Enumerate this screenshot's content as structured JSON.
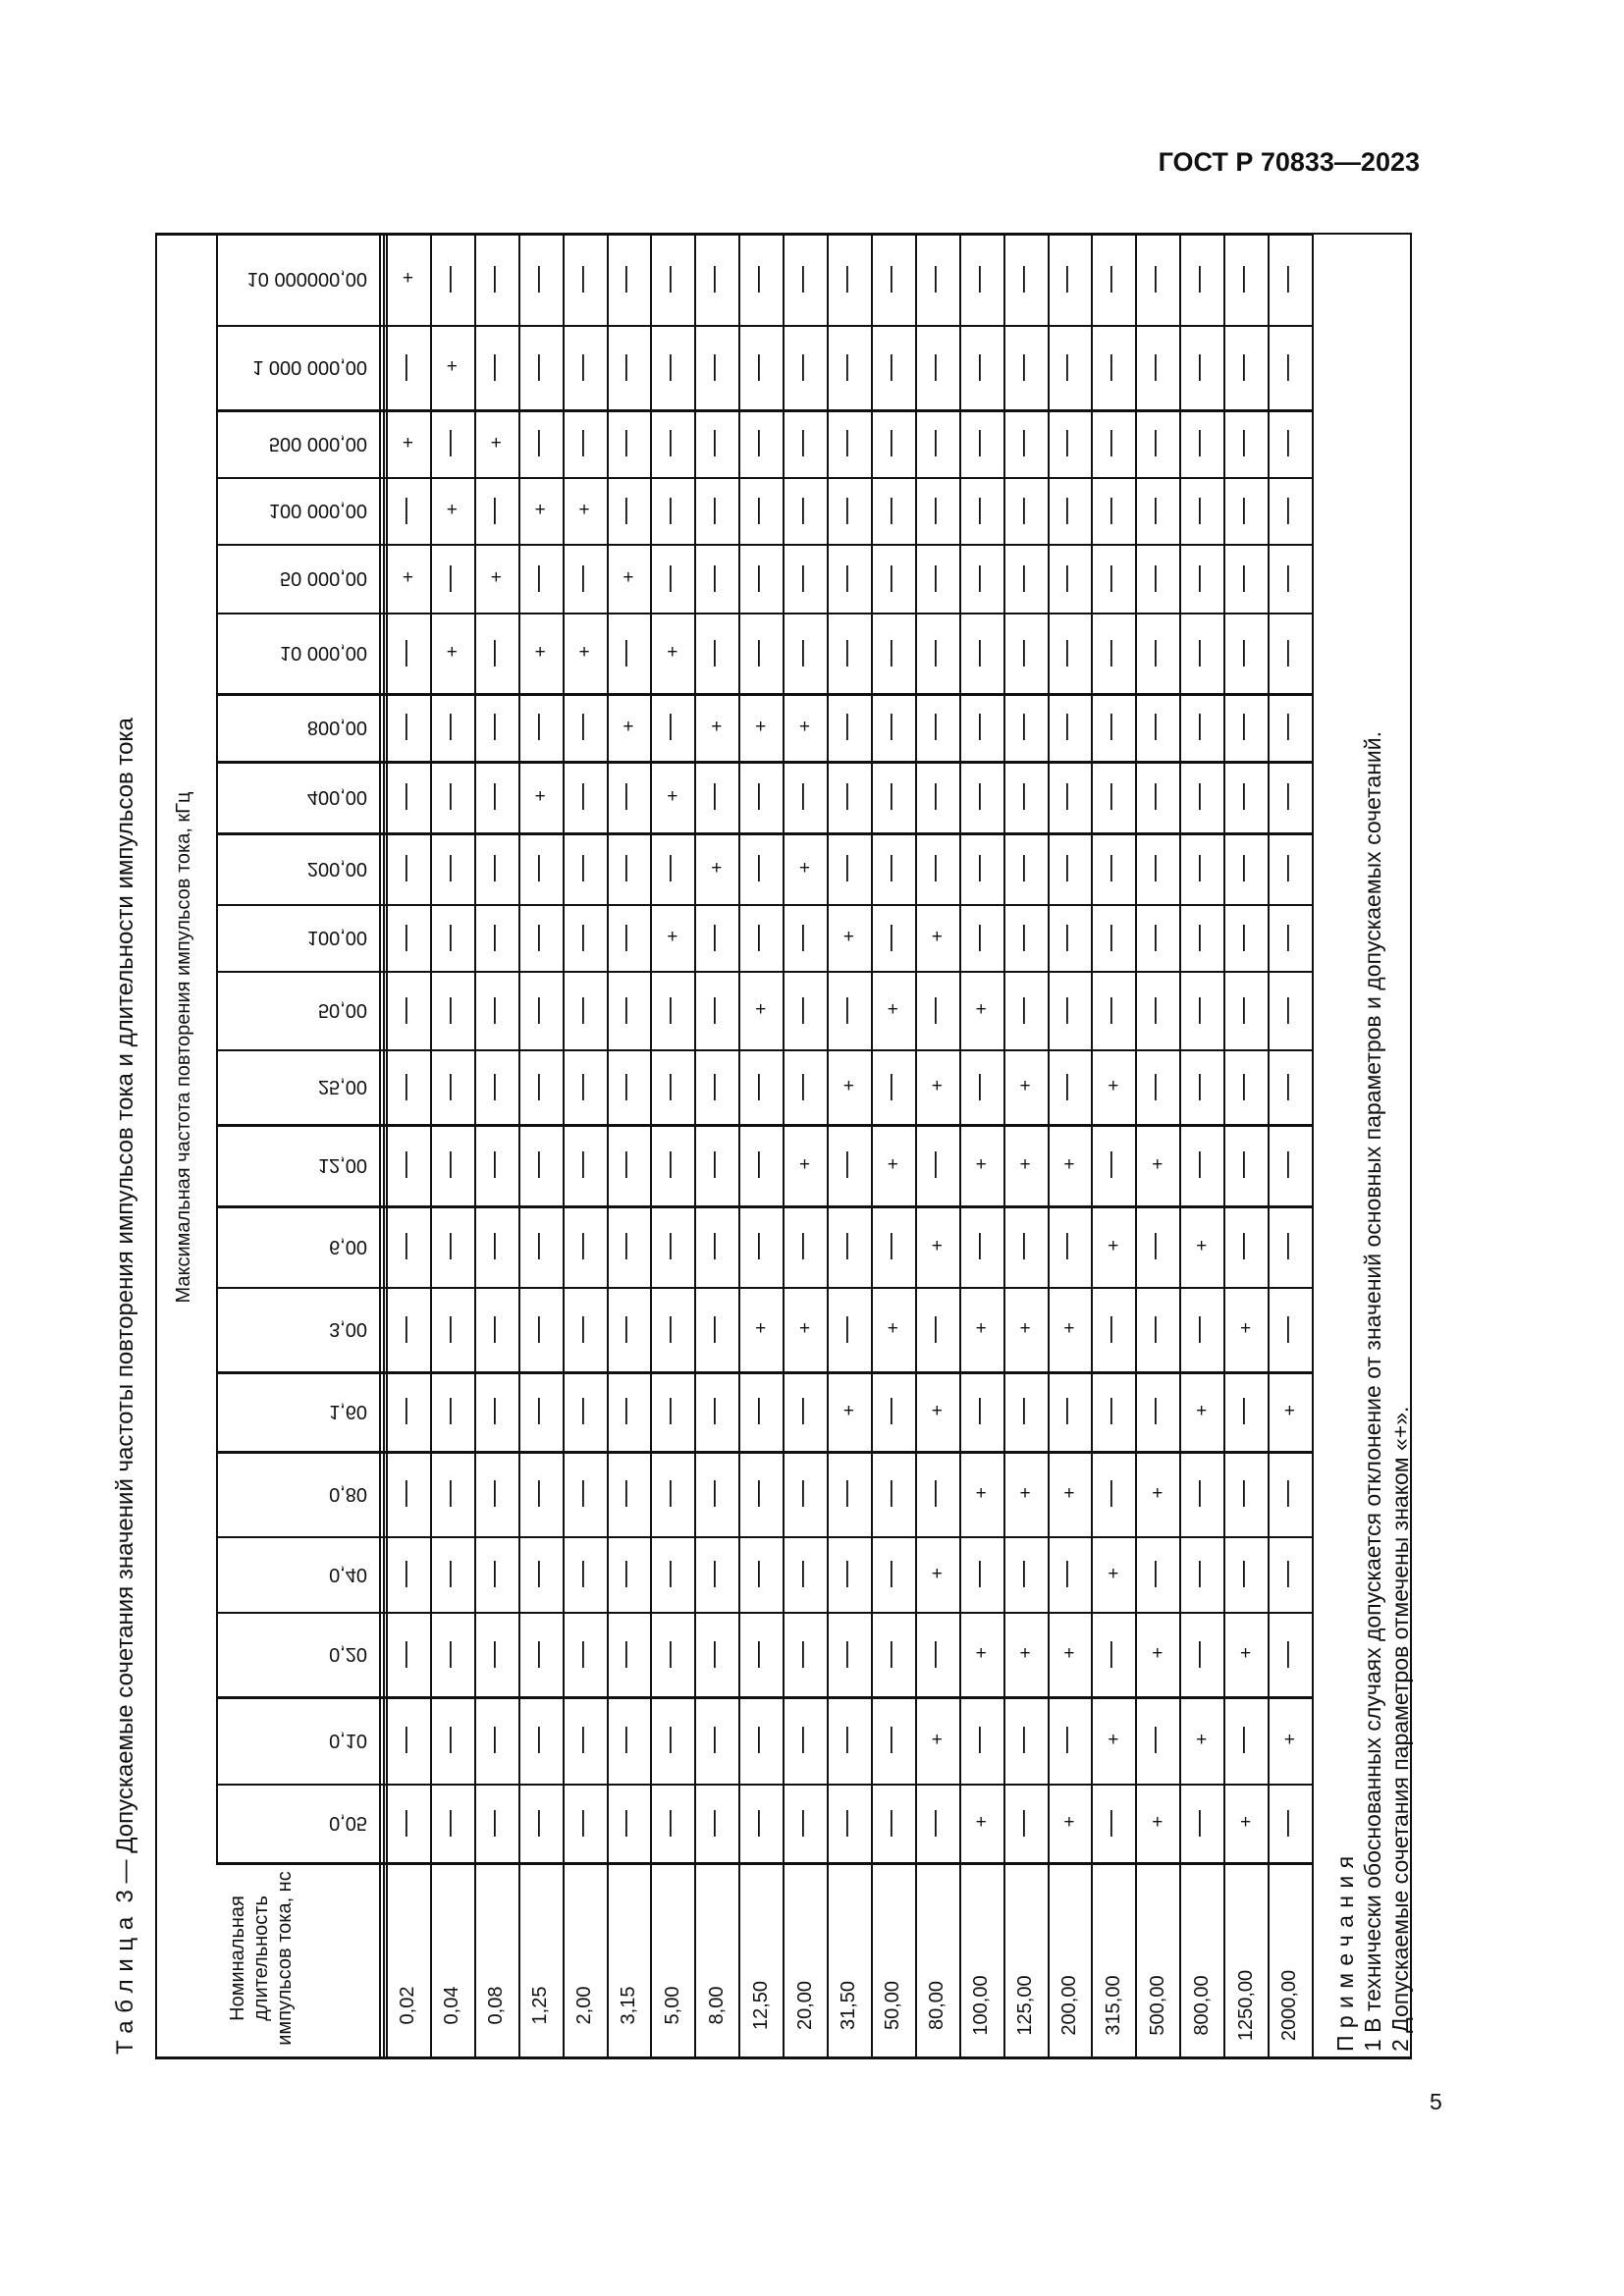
{
  "header": {
    "document_code": "ГОСТ Р 70833—2023"
  },
  "page_number": "5",
  "table": {
    "caption_label": "Таблица",
    "caption_rest": " 3 — Допускаемые сочетания значений частоты повторения импульсов тока и длительности импульсов тока",
    "row_header": "Максимальная частота повторения импульсов тока, кГц",
    "column_header": "Номинальная длительность импульсов тока, нс",
    "durations": [
      "0,02",
      "0,04",
      "0,08",
      "1,25",
      "2,00",
      "3,15",
      "5,00",
      "8,00",
      "12,50",
      "20,00",
      "31,50",
      "50,00",
      "80,00",
      "100,00",
      "125,00",
      "200,00",
      "315,00",
      "500,00",
      "800,00",
      "1250,00",
      "2000,00"
    ],
    "rows": [
      {
        "frequency": "10 000000,00",
        "cells": [
          "+",
          "—",
          "—",
          "—",
          "—",
          "—",
          "—",
          "—",
          "—",
          "—",
          "—",
          "—",
          "—",
          "—",
          "—",
          "—",
          "—",
          "—",
          "—",
          "—",
          "—"
        ]
      },
      {
        "frequency": "1 000 000,00",
        "cells": [
          "—",
          "+",
          "—",
          "—",
          "—",
          "—",
          "—",
          "—",
          "—",
          "—",
          "—",
          "—",
          "—",
          "—",
          "—",
          "—",
          "—",
          "—",
          "—",
          "—",
          "—"
        ]
      },
      {
        "frequency": "500 000,00",
        "cells": [
          "+",
          "—",
          "+",
          "—",
          "—",
          "—",
          "—",
          "—",
          "—",
          "—",
          "—",
          "—",
          "—",
          "—",
          "—",
          "—",
          "—",
          "—",
          "—",
          "—",
          "—"
        ]
      },
      {
        "frequency": "100 000,00",
        "cells": [
          "—",
          "+",
          "—",
          "+",
          "+",
          "—",
          "—",
          "—",
          "—",
          "—",
          "—",
          "—",
          "—",
          "—",
          "—",
          "—",
          "—",
          "—",
          "—",
          "—",
          "—"
        ]
      },
      {
        "frequency": "50 000,00",
        "cells": [
          "+",
          "—",
          "+",
          "—",
          "—",
          "+",
          "—",
          "—",
          "—",
          "—",
          "—",
          "—",
          "—",
          "—",
          "—",
          "—",
          "—",
          "—",
          "—",
          "—",
          "—"
        ]
      },
      {
        "frequency": "10 000,00",
        "cells": [
          "—",
          "+",
          "—",
          "+",
          "+",
          "—",
          "+",
          "—",
          "—",
          "—",
          "—",
          "—",
          "—",
          "—",
          "—",
          "—",
          "—",
          "—",
          "—",
          "—",
          "—"
        ]
      },
      {
        "frequency": "800,00",
        "cells": [
          "—",
          "—",
          "—",
          "—",
          "—",
          "+",
          "—",
          "+",
          "+",
          "+",
          "—",
          "—",
          "—",
          "—",
          "—",
          "—",
          "—",
          "—",
          "—",
          "—",
          "—"
        ]
      },
      {
        "frequency": "400,00",
        "cells": [
          "—",
          "—",
          "—",
          "+",
          "—",
          "—",
          "+",
          "—",
          "—",
          "—",
          "—",
          "—",
          "—",
          "—",
          "—",
          "—",
          "—",
          "—",
          "—",
          "—",
          "—"
        ]
      },
      {
        "frequency": "200,00",
        "cells": [
          "—",
          "—",
          "—",
          "—",
          "—",
          "—",
          "—",
          "+",
          "—",
          "+",
          "—",
          "—",
          "—",
          "—",
          "—",
          "—",
          "—",
          "—",
          "—",
          "—",
          "—"
        ]
      },
      {
        "frequency": "100,00",
        "cells": [
          "—",
          "—",
          "—",
          "—",
          "—",
          "—",
          "+",
          "—",
          "—",
          "—",
          "+",
          "—",
          "+",
          "—",
          "—",
          "—",
          "—",
          "—",
          "—",
          "—",
          "—"
        ]
      },
      {
        "frequency": "50,00",
        "cells": [
          "—",
          "—",
          "—",
          "—",
          "—",
          "—",
          "—",
          "—",
          "+",
          "—",
          "—",
          "+",
          "—",
          "+",
          "—",
          "—",
          "—",
          "—",
          "—",
          "—",
          "—"
        ]
      },
      {
        "frequency": "25,00",
        "cells": [
          "—",
          "—",
          "—",
          "—",
          "—",
          "—",
          "—",
          "—",
          "—",
          "—",
          "+",
          "—",
          "+",
          "—",
          "+",
          "—",
          "+",
          "—",
          "—",
          "—",
          "—"
        ]
      },
      {
        "frequency": "12,00",
        "cells": [
          "—",
          "—",
          "—",
          "—",
          "—",
          "—",
          "—",
          "—",
          "—",
          "+",
          "—",
          "+",
          "—",
          "+",
          "+",
          "+",
          "—",
          "+",
          "—",
          "—",
          "—"
        ]
      },
      {
        "frequency": "6,00",
        "cells": [
          "—",
          "—",
          "—",
          "—",
          "—",
          "—",
          "—",
          "—",
          "—",
          "—",
          "—",
          "—",
          "+",
          "—",
          "—",
          "—",
          "+",
          "—",
          "+",
          "—",
          "—"
        ]
      },
      {
        "frequency": "3,00",
        "cells": [
          "—",
          "—",
          "—",
          "—",
          "—",
          "—",
          "—",
          "—",
          "+",
          "+",
          "—",
          "+",
          "—",
          "+",
          "+",
          "+",
          "—",
          "—",
          "—",
          "+",
          "—"
        ]
      },
      {
        "frequency": "1,60",
        "cells": [
          "—",
          "—",
          "—",
          "—",
          "—",
          "—",
          "—",
          "—",
          "—",
          "—",
          "+",
          "—",
          "+",
          "—",
          "—",
          "—",
          "—",
          "—",
          "+",
          "—",
          "+"
        ]
      },
      {
        "frequency": "0,80",
        "cells": [
          "—",
          "—",
          "—",
          "—",
          "—",
          "—",
          "—",
          "—",
          "—",
          "—",
          "—",
          "—",
          "—",
          "+",
          "+",
          "+",
          "—",
          "+",
          "—",
          "—",
          "—"
        ]
      },
      {
        "frequency": "0,40",
        "cells": [
          "—",
          "—",
          "—",
          "—",
          "—",
          "—",
          "—",
          "—",
          "—",
          "—",
          "—",
          "—",
          "+",
          "—",
          "—",
          "—",
          "+",
          "—",
          "—",
          "—",
          "—"
        ]
      },
      {
        "frequency": "0,20",
        "cells": [
          "—",
          "—",
          "—",
          "—",
          "—",
          "—",
          "—",
          "—",
          "—",
          "—",
          "—",
          "—",
          "—",
          "+",
          "+",
          "+",
          "—",
          "+",
          "—",
          "+",
          "—"
        ]
      },
      {
        "frequency": "0,10",
        "cells": [
          "—",
          "—",
          "—",
          "—",
          "—",
          "—",
          "—",
          "—",
          "—",
          "—",
          "—",
          "—",
          "+",
          "—",
          "—",
          "—",
          "+",
          "—",
          "+",
          "—",
          "+"
        ]
      },
      {
        "frequency": "0,05",
        "cells": [
          "—",
          "—",
          "—",
          "—",
          "—",
          "—",
          "—",
          "—",
          "—",
          "—",
          "—",
          "—",
          "—",
          "+",
          "—",
          "+",
          "—",
          "+",
          "—",
          "+",
          "—"
        ]
      }
    ],
    "notes": {
      "heading": "Примечания",
      "items": [
        "1 В технически обоснованных случаях допускается отклонение от значений основных параметров и допускаемых сочетаний.",
        "2 Допускаемые сочетания параметров отмечены знаком «+»."
      ]
    }
  }
}
